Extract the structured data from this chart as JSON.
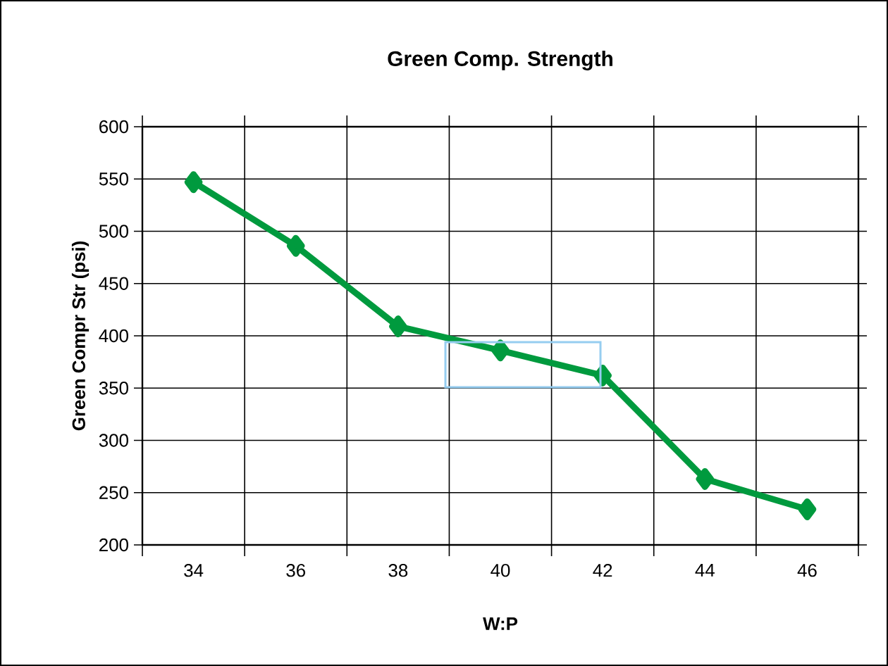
{
  "chart_data": {
    "type": "line",
    "title": "Green Comp. Strength",
    "xlabel": "W:P",
    "ylabel": "Green Compr Str (psi)",
    "categories": [
      "34",
      "36",
      "38",
      "40",
      "42",
      "44",
      "46"
    ],
    "series": [
      {
        "color": "#009a3e",
        "values": [
          547,
          486,
          409,
          386,
          362,
          263,
          234
        ]
      }
    ],
    "ylim": [
      200,
      600
    ],
    "yticks": [
      200,
      250,
      300,
      350,
      400,
      450,
      500,
      550,
      600
    ],
    "grid": true,
    "marker": "diamond",
    "line_style": "solid"
  }
}
